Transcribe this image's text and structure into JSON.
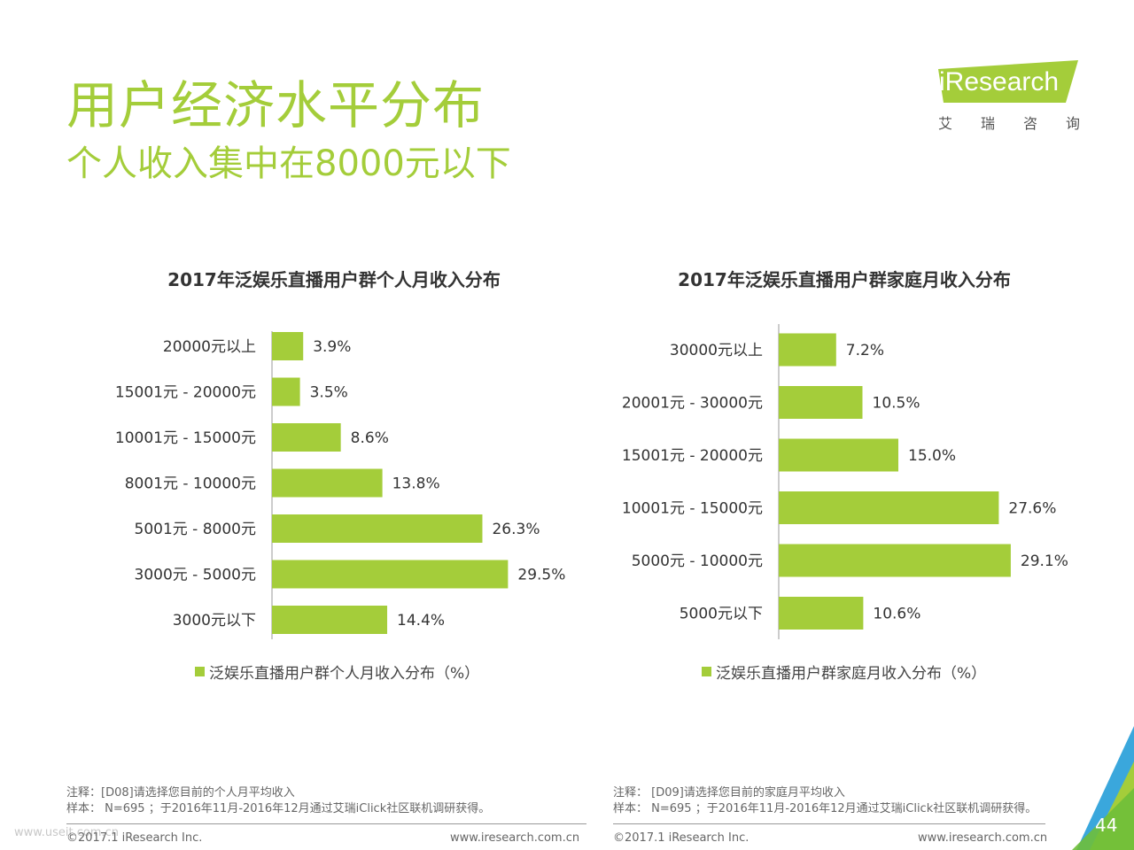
{
  "header": {
    "title": "用户经济水平分布",
    "subtitle": "个人收入集中在8000元以下"
  },
  "logo": {
    "text": "iResearch",
    "cn": [
      "艾",
      "瑞",
      "咨",
      "询"
    ]
  },
  "colors": {
    "accent": "#a4cd3a",
    "bar": "#a4cd3a",
    "corner_blue": "#3aa7dc",
    "corner_green": "#a4cd3a"
  },
  "chart_data": [
    {
      "type": "bar",
      "orientation": "horizontal",
      "title": "2017年泛娱乐直播用户群个人月收入分布",
      "categories": [
        "20000元以上",
        "15001元 - 20000元",
        "10001元 - 15000元",
        "8001元 - 10000元",
        "5001元 - 8000元",
        "3000元 - 5000元",
        "3000元以下"
      ],
      "values": [
        3.9,
        3.5,
        8.6,
        13.8,
        26.3,
        29.5,
        14.4
      ],
      "value_labels": [
        "3.9%",
        "3.5%",
        "8.6%",
        "13.8%",
        "26.3%",
        "29.5%",
        "14.4%"
      ],
      "legend": "泛娱乐直播用户群个人月收入分布（%）",
      "xlim": [
        0,
        32
      ],
      "grid": false,
      "legend_position": "bottom"
    },
    {
      "type": "bar",
      "orientation": "horizontal",
      "title": "2017年泛娱乐直播用户群家庭月收入分布",
      "categories": [
        "30000元以上",
        "20001元 - 30000元",
        "15001元 - 20000元",
        "10001元 - 15000元",
        "5000元 - 10000元",
        "5000元以下"
      ],
      "values": [
        7.2,
        10.5,
        15.0,
        27.6,
        29.1,
        10.6
      ],
      "value_labels": [
        "7.2%",
        "10.5%",
        "15.0%",
        "27.6%",
        "29.1%",
        "10.6%"
      ],
      "legend": "泛娱乐直播用户群家庭月收入分布（%）",
      "xlim": [
        0,
        32
      ],
      "grid": false,
      "legend_position": "bottom"
    }
  ],
  "notes": {
    "left": {
      "line1": "注释：[D08]请选择您目前的个人月平均收入",
      "line2": "样本： N=695 ；于2016年11月-2016年12月通过艾瑞iClick社区联机调研获得。"
    },
    "right": {
      "line1": "注释： [D09]请选择您目前的家庭月平均收入",
      "line2": "样本： N=695 ；于2016年11月-2016年12月通过艾瑞iClick社区联机调研获得。"
    }
  },
  "footer": {
    "copyright": "©2017.1 iResearch Inc.",
    "website": "www.iresearch.com.cn",
    "watermark": "www.useit.com.cn",
    "page_number": "44"
  }
}
